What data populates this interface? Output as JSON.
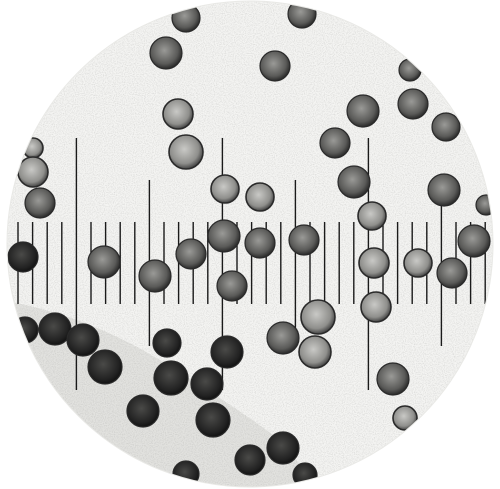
{
  "image": {
    "subject": "microscope-field-of-view",
    "colors": {
      "background": "#ffffff",
      "field": "#f4f4f2",
      "stipple": "#b8b8b4",
      "scale_line": "#1a1a1a",
      "cell_dark": "#1e1e1e",
      "cell_mid": "#555555",
      "cell_light": "#8c8c8c",
      "cell_rim": "#2a2a2a"
    },
    "icons": {
      "scale": "micrometer-scale-icon",
      "cell": "blood-cell-icon"
    }
  }
}
